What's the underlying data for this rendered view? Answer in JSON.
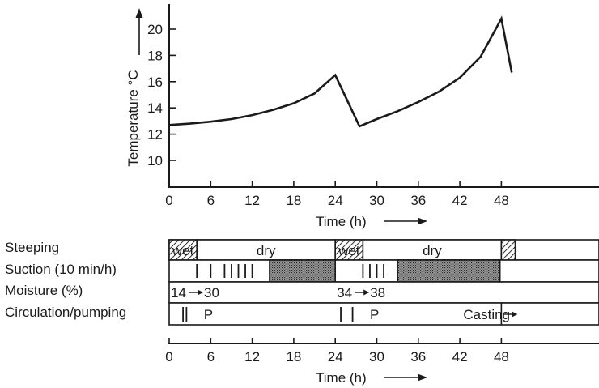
{
  "chart_data": {
    "type": "line",
    "x_axis": {
      "label": "Time (h)",
      "ticks": [
        0,
        6,
        12,
        18,
        24,
        30,
        36,
        42,
        48
      ],
      "range": [
        0,
        49.5
      ]
    },
    "y_axis": {
      "label": "Temperature °C",
      "ticks": [
        10,
        12,
        14,
        16,
        18,
        20
      ],
      "range": [
        8.5,
        21.8
      ]
    },
    "grid": false,
    "series": [
      {
        "x": [
          0,
          3,
          6,
          9,
          12,
          15,
          18,
          21,
          24,
          27.5,
          30,
          33,
          36,
          39,
          42,
          45,
          48,
          49.5
        ],
        "y": [
          12.7,
          12.8,
          12.95,
          13.15,
          13.45,
          13.85,
          14.35,
          15.1,
          16.5,
          12.6,
          13.15,
          13.75,
          14.45,
          15.25,
          16.3,
          17.9,
          20.8,
          16.7
        ]
      }
    ],
    "process_rows": [
      {
        "label": "Steeping",
        "segments": [
          {
            "text": "wet",
            "start": 0,
            "end": 4,
            "style": "hatch"
          },
          {
            "text": "dry",
            "start": 4,
            "end": 24,
            "style": "plain"
          },
          {
            "text": "wet",
            "start": 24,
            "end": 28,
            "style": "hatch"
          },
          {
            "text": "dry",
            "start": 28,
            "end": 48,
            "style": "plain"
          },
          {
            "text": "",
            "start": 48,
            "end": 50,
            "style": "hatch"
          }
        ]
      },
      {
        "label": "Suction (10 min/h)",
        "ticks": [
          4,
          6,
          8,
          9,
          10,
          11,
          12,
          28,
          29,
          30,
          31
        ],
        "blocks": [
          {
            "start": 14.5,
            "end": 24
          },
          {
            "start": 33,
            "end": 47.8
          }
        ]
      },
      {
        "label": "Moisture (%)",
        "annotations": [
          {
            "from": "14",
            "to": "30",
            "x": 0
          },
          {
            "from": "34",
            "to": "38",
            "x": 24
          }
        ]
      },
      {
        "label": "Circulation/pumping",
        "ticks": [
          2,
          2.5,
          24.8,
          26.5
        ],
        "text_marks": [
          {
            "text": "P",
            "x": 5
          },
          {
            "text": "P",
            "x": 29
          },
          {
            "text": "Casting",
            "x": 42.5
          }
        ]
      }
    ]
  }
}
